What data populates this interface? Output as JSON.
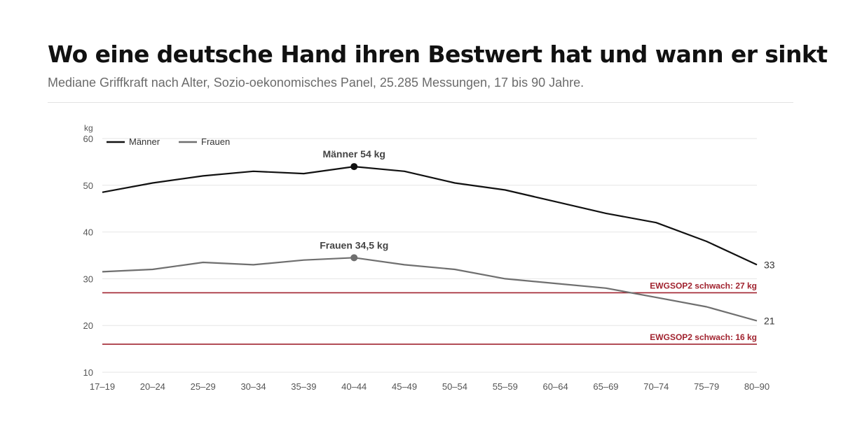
{
  "header": {
    "title": "Wo eine deutsche Hand ihren Bestwert hat und wann er sinkt",
    "subtitle": "Mediane Griffkraft nach Alter, Sozio-oekonomisches Panel, 25.285 Messungen, 17 bis 90 Jahre."
  },
  "colors": {
    "maenner": "#111111",
    "frauen": "#6f6f6f",
    "reference": "#a1232f",
    "grid": "#e6e6e6"
  },
  "chart_data": {
    "type": "line",
    "ylabel": "kg",
    "ylim": [
      10,
      60
    ],
    "yticks": [
      "10",
      "20",
      "30",
      "40",
      "50",
      "60"
    ],
    "categories": [
      "17–19",
      "20–24",
      "25–29",
      "30–34",
      "35–39",
      "40–44",
      "45–49",
      "50–54",
      "55–59",
      "60–64",
      "65–69",
      "70–74",
      "75–79",
      "80–90"
    ],
    "grid": true,
    "legend_position": "top-left",
    "series": [
      {
        "name": "Männer",
        "values": [
          48.5,
          50.5,
          52,
          53,
          52.5,
          54,
          53,
          50.5,
          49,
          46.5,
          44,
          42,
          38,
          33
        ],
        "peak_label": "Männer 54 kg",
        "end_label": "33"
      },
      {
        "name": "Frauen",
        "values": [
          31.5,
          32,
          33.5,
          33,
          34,
          34.5,
          33,
          32,
          30,
          29,
          28,
          26,
          24,
          21
        ],
        "peak_label": "Frauen 34,5 kg",
        "end_label": "21"
      }
    ],
    "reference_lines": [
      {
        "value": 27,
        "label": "EWGSOP2 schwach: 27 kg"
      },
      {
        "value": 16,
        "label": "EWGSOP2 schwach: 16 kg"
      }
    ]
  }
}
